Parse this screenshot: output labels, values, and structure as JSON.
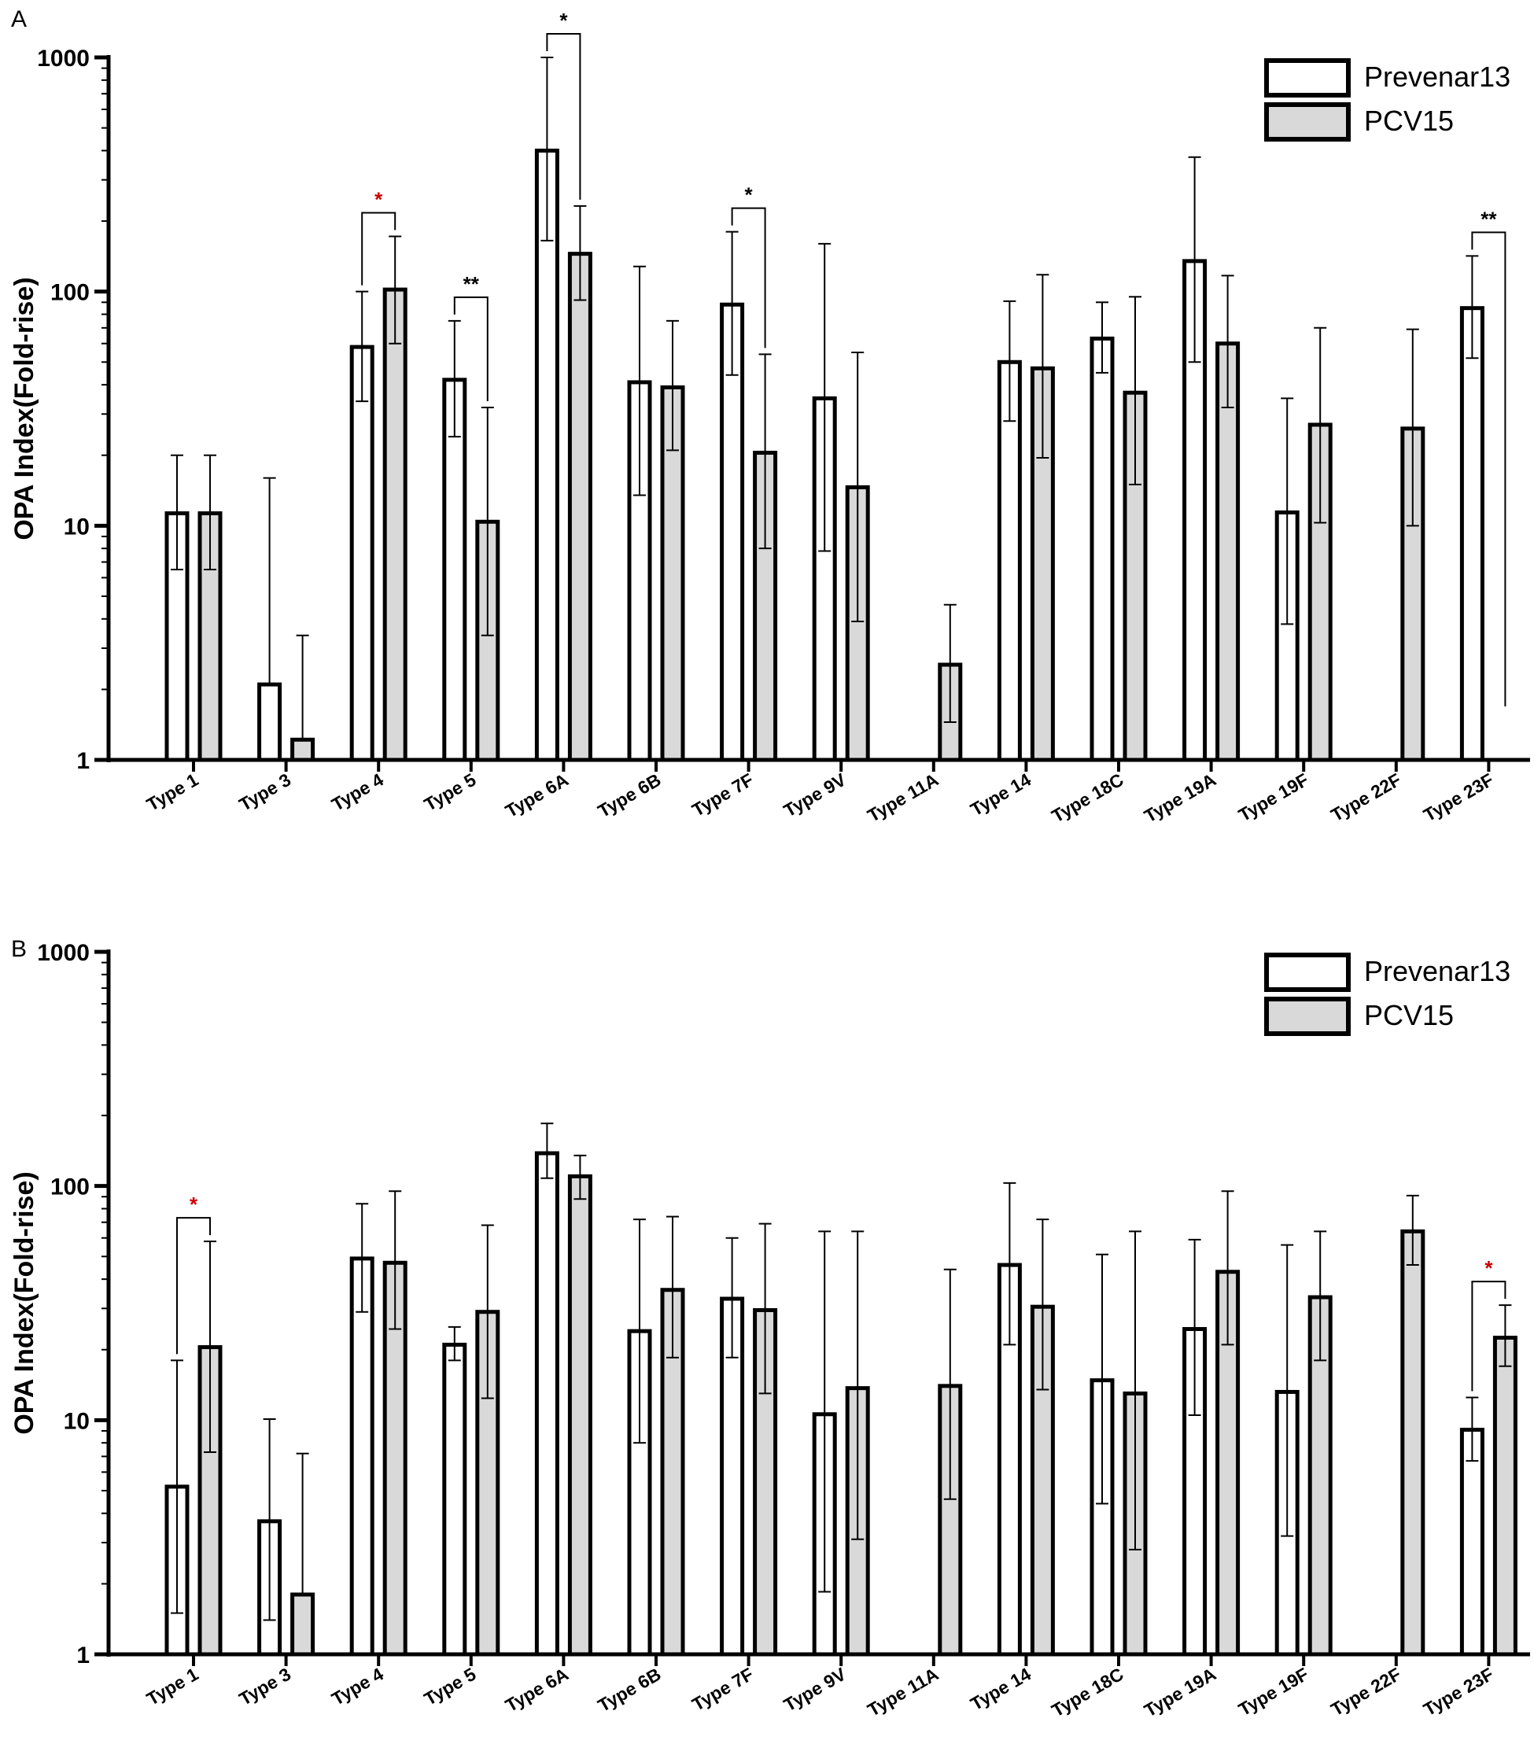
{
  "colors": {
    "prevenar": "#ffffff",
    "pcv15": "#d9d9d9",
    "stroke": "#000000",
    "sig_black": "#000000",
    "sig_red": "#cc0000"
  },
  "legend": {
    "series_a": "Prevenar13",
    "series_b": "PCV15"
  },
  "chart_data": [
    {
      "panel": "A",
      "type": "bar",
      "ylabel": "OPA Index(Fold-rise)",
      "yscale": "log",
      "ylim": [
        1,
        1000
      ],
      "yticks": [
        "1",
        "10",
        "100",
        "1000"
      ],
      "legend_position": "top-right",
      "categories": [
        "Type 1",
        "Type 3",
        "Type 4",
        "Type 5",
        "Type 6A",
        "Type 6B",
        "Type 7F",
        "Type 9V",
        "Type 11A",
        "Type 14",
        "Type 18C",
        "Type 19A",
        "Type 19F",
        "Type 22F",
        "Type 23F"
      ],
      "series": [
        {
          "name": "Prevenar13",
          "values": [
            11.3,
            2.1,
            58,
            42,
            400,
            41,
            88,
            35,
            null,
            50,
            63,
            135,
            11.4,
            null,
            85
          ],
          "err_low": [
            6.5,
            null,
            34,
            24,
            165,
            13.5,
            44,
            7.8,
            null,
            28,
            45,
            50,
            3.8,
            null,
            52
          ],
          "err_high": [
            20,
            16,
            100,
            75,
            1000,
            128,
            180,
            160,
            null,
            91,
            90,
            375,
            35,
            null,
            142
          ]
        },
        {
          "name": "PCV15",
          "values": [
            11.3,
            1.22,
            102,
            10.4,
            145,
            39,
            20.5,
            14.6,
            2.55,
            47,
            37,
            60,
            27,
            26,
            null
          ],
          "err_low": [
            6.5,
            null,
            60,
            3.4,
            92,
            21,
            8,
            3.9,
            1.45,
            19.5,
            15,
            32,
            10.3,
            10,
            null
          ],
          "err_high": [
            20,
            3.4,
            172,
            32,
            232,
            75,
            54,
            55,
            4.6,
            118,
            95,
            117,
            70,
            69,
            null
          ]
        }
      ],
      "significance": [
        {
          "category_index": 2,
          "label": "*",
          "color": "red"
        },
        {
          "category_index": 3,
          "label": "**",
          "color": "black"
        },
        {
          "category_index": 4,
          "label": "*",
          "color": "black"
        },
        {
          "category_index": 6,
          "label": "*",
          "color": "black"
        },
        {
          "category_index": 14,
          "label": "**",
          "color": "black"
        }
      ]
    },
    {
      "panel": "B",
      "type": "bar",
      "ylabel": "OPA Index(Fold-rise)",
      "yscale": "log",
      "ylim": [
        1,
        1000
      ],
      "yticks": [
        "1",
        "10",
        "100",
        "1000"
      ],
      "legend_position": "top-right",
      "categories": [
        "Type 1",
        "Type 3",
        "Type 4",
        "Type 5",
        "Type 6A",
        "Type 6B",
        "Type 7F",
        "Type 9V",
        "Type 11A",
        "Type 14",
        "Type 18C",
        "Type 19A",
        "Type 19F",
        "Type 22F",
        "Type 23F"
      ],
      "series": [
        {
          "name": "Prevenar13",
          "values": [
            5.2,
            3.7,
            49,
            21,
            138,
            24,
            33,
            10.6,
            null,
            46,
            14.8,
            24.5,
            13.2,
            null,
            9.1
          ],
          "err_low": [
            1.5,
            1.4,
            29,
            18,
            108,
            8,
            18.5,
            1.85,
            null,
            21,
            4.4,
            10.5,
            3.2,
            null,
            6.7
          ],
          "err_high": [
            18,
            10.1,
            84,
            25,
            185,
            72,
            60,
            64,
            null,
            103,
            51,
            59,
            56,
            null,
            12.5
          ]
        },
        {
          "name": "PCV15",
          "values": [
            20.5,
            1.8,
            47,
            29,
            110,
            36,
            29.5,
            13.7,
            14,
            30.5,
            13,
            43,
            33.5,
            64,
            22.5
          ],
          "err_low": [
            7.3,
            null,
            24.5,
            12.4,
            88,
            18.5,
            13,
            3.1,
            4.6,
            13.5,
            2.8,
            21,
            18,
            46,
            17
          ],
          "err_high": [
            58,
            7.2,
            95,
            68,
            135,
            74,
            69,
            64,
            44,
            72,
            64,
            95,
            64,
            91,
            31
          ]
        }
      ],
      "significance": [
        {
          "category_index": 0,
          "label": "*",
          "color": "red"
        },
        {
          "category_index": 14,
          "label": "*",
          "color": "red"
        }
      ]
    }
  ],
  "panels": [
    {
      "label": "A"
    },
    {
      "label": "B"
    }
  ]
}
